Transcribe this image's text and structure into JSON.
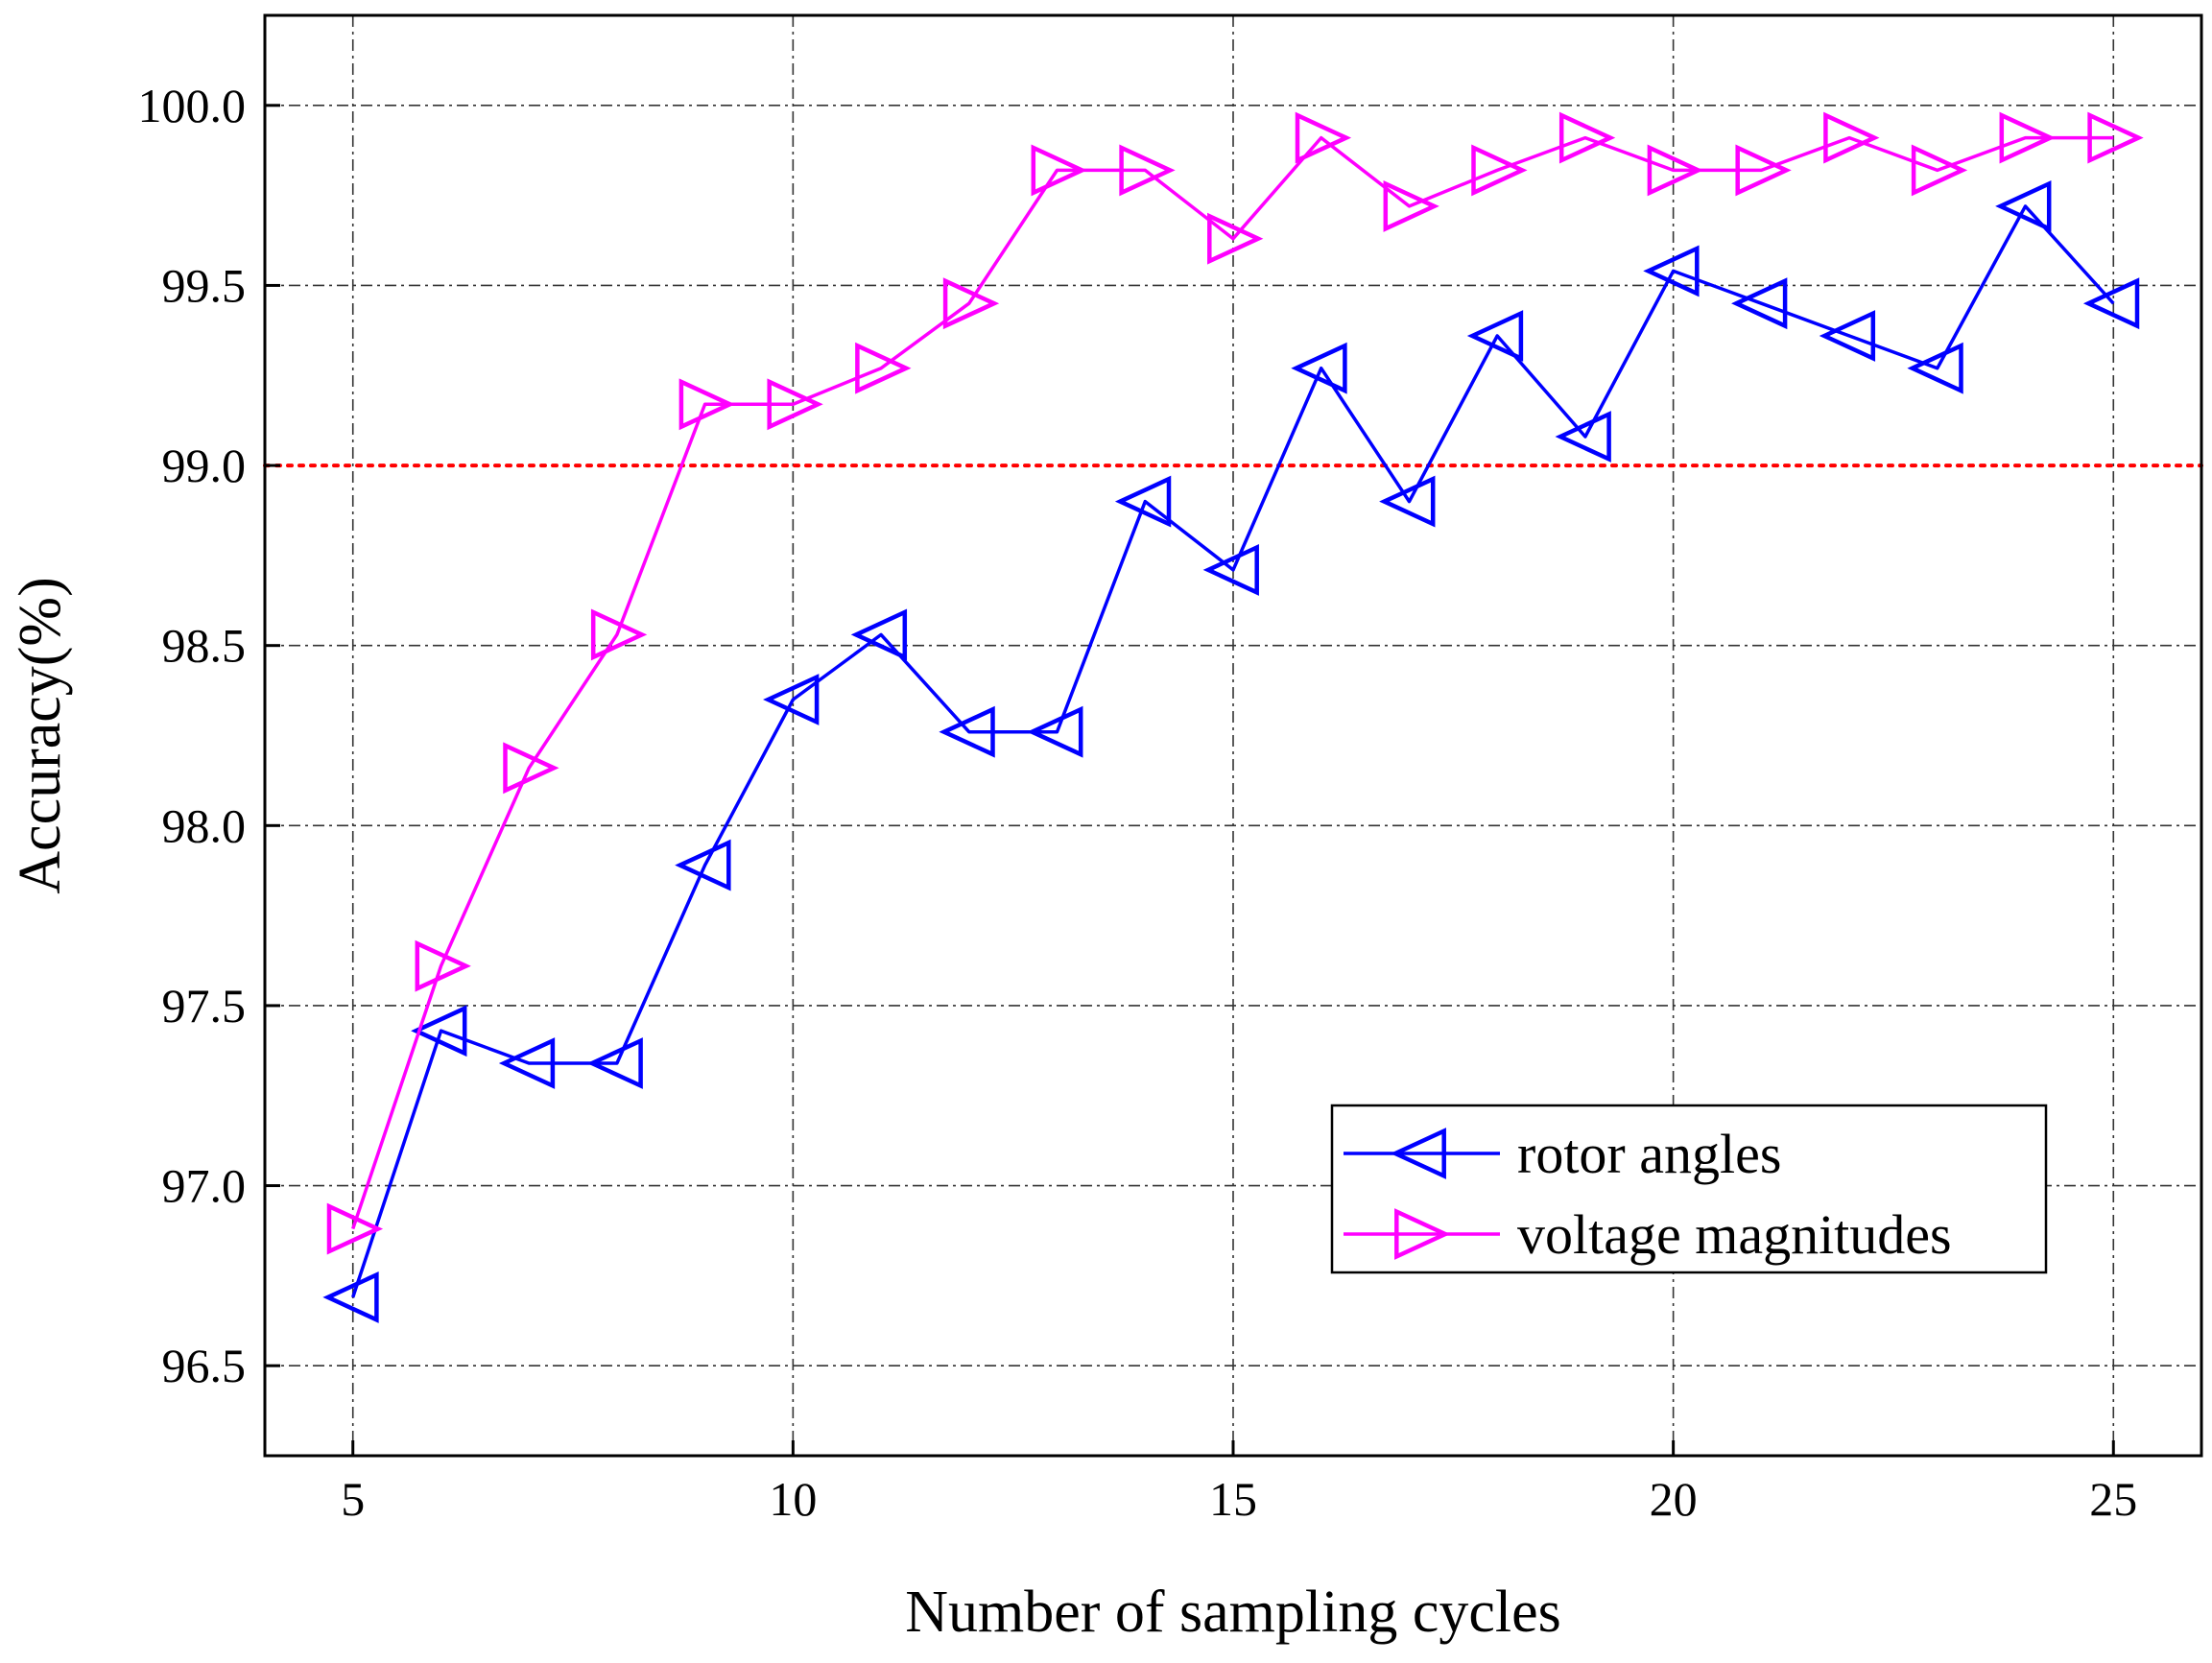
{
  "chart_data": {
    "type": "line",
    "title": "",
    "xlabel": "Number of sampling cycles",
    "ylabel": "Accuracy(%)",
    "xlim": [
      4,
      26
    ],
    "ylim": [
      96.25,
      100.25
    ],
    "xticks": [
      5,
      10,
      15,
      20,
      25
    ],
    "xtick_labels": [
      "5",
      "10",
      "15",
      "20",
      "25"
    ],
    "yticks": [
      96.5,
      97.0,
      97.5,
      98.0,
      98.5,
      99.0,
      99.5,
      100.0
    ],
    "ytick_labels": [
      "96.5",
      "97.0",
      "97.5",
      "98.0",
      "98.5",
      "99.0",
      "99.5",
      "100.0"
    ],
    "grid": true,
    "reference_line": {
      "y": 99.0,
      "color": "#ff0000",
      "style": "dotted"
    },
    "legend": {
      "position": "bottom-right"
    },
    "x": [
      5,
      6,
      7,
      8,
      9,
      10,
      11,
      12,
      13,
      14,
      15,
      16,
      17,
      18,
      19,
      20,
      21,
      22,
      23,
      24,
      25
    ],
    "series": [
      {
        "name": "rotor angles",
        "color": "#0000ff",
        "marker": "left-triangle",
        "values": [
          96.69,
          97.43,
          97.34,
          97.34,
          97.89,
          98.35,
          98.53,
          98.26,
          98.26,
          98.9,
          98.71,
          99.27,
          98.9,
          99.36,
          99.08,
          99.54,
          99.45,
          99.36,
          99.27,
          99.72,
          99.45
        ]
      },
      {
        "name": "voltage magnitudes",
        "color": "#ff00ff",
        "marker": "right-triangle",
        "values": [
          96.88,
          97.61,
          98.16,
          98.53,
          99.17,
          99.17,
          99.27,
          99.45,
          99.82,
          99.82,
          99.63,
          99.91,
          99.72,
          99.82,
          99.91,
          99.82,
          99.82,
          99.91,
          99.82,
          99.91,
          99.91
        ]
      }
    ]
  }
}
